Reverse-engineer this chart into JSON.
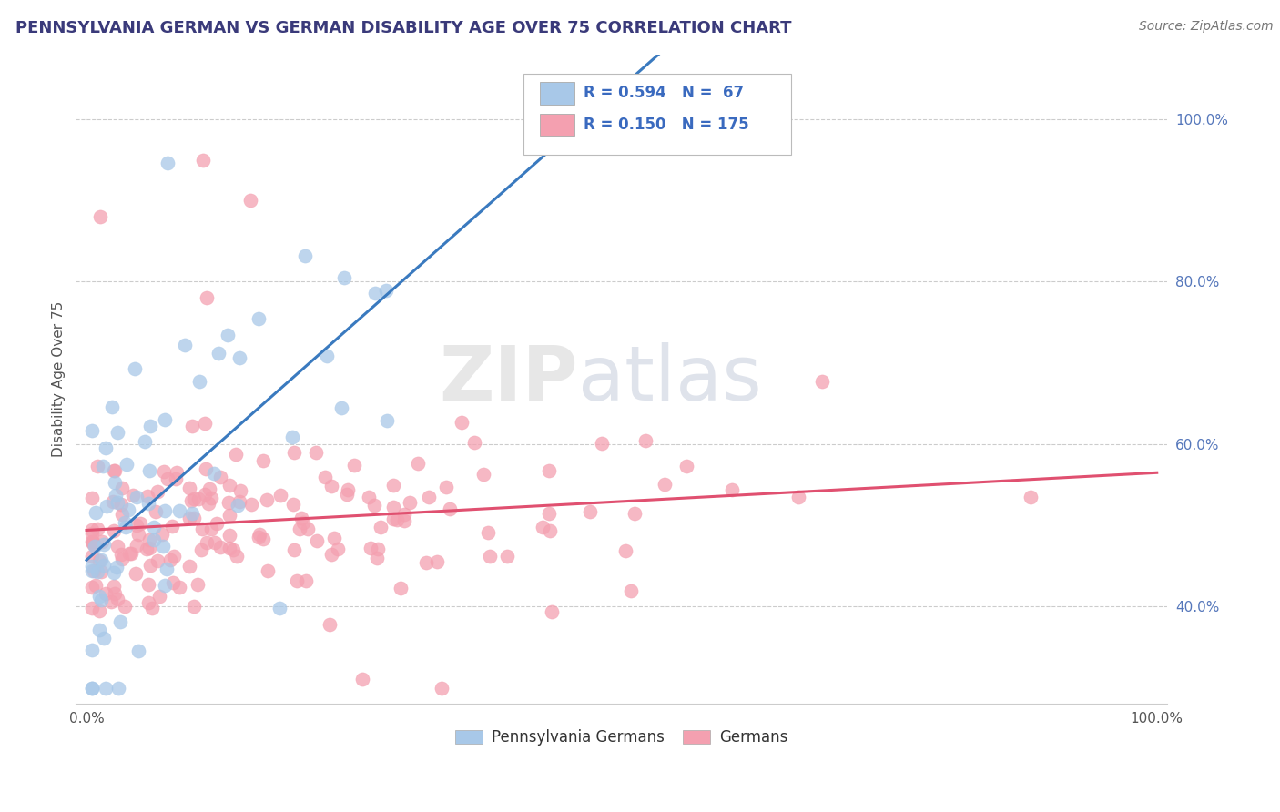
{
  "title": "PENNSYLVANIA GERMAN VS GERMAN DISABILITY AGE OVER 75 CORRELATION CHART",
  "source": "Source: ZipAtlas.com",
  "legend_label_blue": "Pennsylvania Germans",
  "legend_label_pink": "Germans",
  "blue_color": "#a8c8e8",
  "pink_color": "#f4a0b0",
  "blue_line_color": "#3a7abf",
  "pink_line_color": "#e05070",
  "watermark_zip": "ZIP",
  "watermark_atlas": "atlas",
  "title_color": "#3a3a7a",
  "title_fontsize": 13,
  "source_fontsize": 10,
  "background_color": "#ffffff",
  "xlim": [
    0.0,
    1.0
  ],
  "ylim_low": 0.28,
  "ylim_high": 1.08,
  "ytick_vals": [
    0.4,
    0.6,
    0.8,
    1.0
  ],
  "ytick_labels": [
    "40.0%",
    "60.0%",
    "80.0%",
    "100.0%"
  ],
  "xtick_vals": [
    0.0,
    1.0
  ],
  "xtick_labels": [
    "0.0%",
    "100.0%"
  ],
  "ylabel": "Disability Age Over 75",
  "grid_color": "#cccccc",
  "legend_blue_text": "R = 0.594   N =  67",
  "legend_pink_text": "R = 0.150   N = 175"
}
